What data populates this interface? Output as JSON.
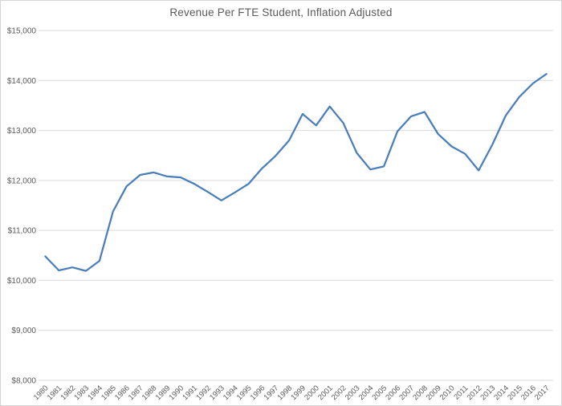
{
  "title": "Revenue Per FTE Student, Inflation Adjusted",
  "colors": {
    "series_line": "#4a7ebb",
    "gridline": "#d9d9d9",
    "axis_text": "#595959",
    "chart_border": "#d4d4d4",
    "background": "#ffffff"
  },
  "chart_data": {
    "type": "line",
    "title": "Revenue Per FTE Student, Inflation Adjusted",
    "xlabel": "",
    "ylabel": "",
    "legend": "none",
    "grid": "horizontal",
    "ylim": [
      8000,
      15000
    ],
    "ytick_interval": 1000,
    "ytick_labels": [
      "$8,000",
      "$9,000",
      "$10,000",
      "$11,000",
      "$12,000",
      "$13,000",
      "$14,000",
      "$15,000"
    ],
    "x": [
      1980,
      1981,
      1982,
      1983,
      1984,
      1985,
      1986,
      1987,
      1988,
      1989,
      1990,
      1991,
      1992,
      1993,
      1994,
      1995,
      1996,
      1997,
      1998,
      1999,
      2000,
      2001,
      2002,
      2003,
      2004,
      2005,
      2006,
      2007,
      2008,
      2009,
      2010,
      2011,
      2012,
      2013,
      2014,
      2015,
      2016,
      2017
    ],
    "series": [
      {
        "name": "Revenue per FTE student (inflation adjusted)",
        "values": [
          10480,
          10200,
          10260,
          10190,
          10390,
          11380,
          11880,
          12110,
          12160,
          12080,
          12060,
          11930,
          11770,
          11600,
          11760,
          11930,
          12240,
          12490,
          12800,
          13330,
          13100,
          13480,
          13150,
          12550,
          12220,
          12280,
          12980,
          13280,
          13370,
          12930,
          12680,
          12530,
          12200,
          12710,
          13300,
          13670,
          13940,
          14130
        ]
      }
    ]
  }
}
